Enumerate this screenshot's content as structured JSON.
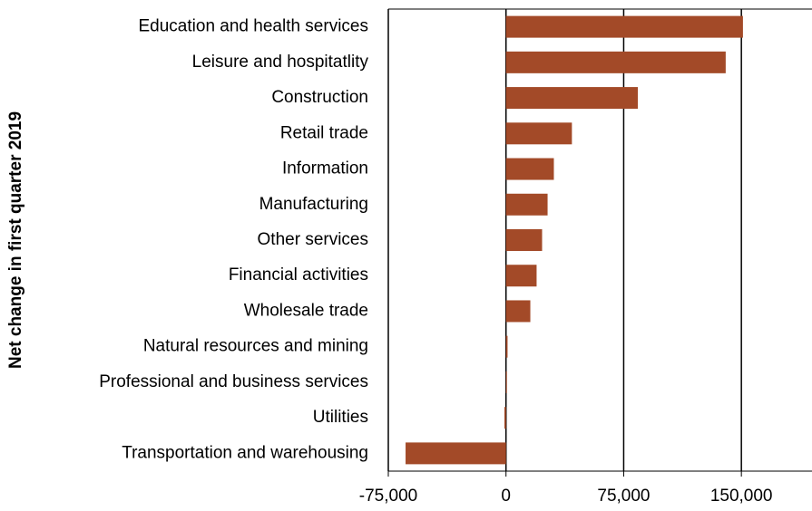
{
  "chart_data": {
    "type": "hbar",
    "y_axis_label": "Net change in first quarter 2019",
    "categories": [
      "Education and health services",
      "Leisure and hospitatlity",
      "Construction",
      "Retail trade",
      "Information",
      "Manufacturing",
      "Other services",
      "Financial activities",
      "Wholesale trade",
      "Natural resources and mining",
      "Professional and business services",
      "Utilities",
      "Transportation and warehousing"
    ],
    "values": [
      151000,
      140000,
      84000,
      42000,
      30500,
      26500,
      23000,
      19500,
      15500,
      1000,
      500,
      -1000,
      -64000
    ],
    "color": "#a34a28",
    "xlim": [
      -75000,
      195000
    ],
    "xticks": [
      {
        "value": -75000,
        "label": "-75,000"
      },
      0,
      {
        "value": 75000,
        "label": "75,000"
      },
      {
        "value": 150000,
        "label": "150,000"
      }
    ],
    "grid": true
  }
}
